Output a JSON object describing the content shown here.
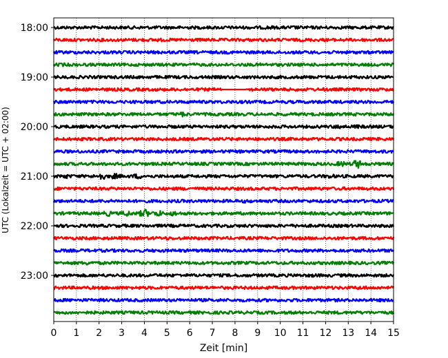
{
  "chart_data": {
    "type": "line",
    "title": "",
    "xlabel": "Zeit  [min]",
    "ylabel": "UTC (Lokalzeit = UTC + 02:00)",
    "xlim": [
      0,
      15
    ],
    "x_ticks": [
      "0",
      "1",
      "2",
      "3",
      "4",
      "5",
      "6",
      "7",
      "8",
      "9",
      "10",
      "11",
      "12",
      "13",
      "14",
      "15"
    ],
    "y_ticks": [
      "18:00",
      "19:00",
      "20:00",
      "21:00",
      "22:00",
      "23:00"
    ],
    "trace_interval_min": 15,
    "start_time": "18:00",
    "trace_count": 24,
    "color_cycle": [
      "#000000",
      "#ff0000",
      "#0000ff",
      "#008000"
    ],
    "grid": "vertical dotted lines at each minute",
    "traces": [
      {
        "time": "18:00",
        "color": "#000000",
        "events": [
          {
            "t": 9.5,
            "amp": 1.3
          },
          {
            "t": 10.6,
            "amp": 1.2
          }
        ]
      },
      {
        "time": "18:15",
        "color": "#ff0000",
        "events": [
          {
            "t": 4.6,
            "amp": 1.2
          },
          {
            "t": 5.7,
            "amp": 1.1
          }
        ]
      },
      {
        "time": "18:30",
        "color": "#0000ff",
        "events": []
      },
      {
        "time": "18:45",
        "color": "#008000",
        "events": [
          {
            "t": 0.4,
            "amp": 1.2
          },
          {
            "t": 9.1,
            "amp": 1.1
          }
        ]
      },
      {
        "time": "19:00",
        "color": "#000000",
        "events": [
          {
            "t": 13.2,
            "amp": 1.1
          }
        ]
      },
      {
        "time": "19:15",
        "color": "#ff0000",
        "events": [
          {
            "t": 11.9,
            "amp": 1.1
          }
        ],
        "gap": [
          7.4,
          8.5
        ]
      },
      {
        "time": "19:30",
        "color": "#0000ff",
        "events": []
      },
      {
        "time": "19:45",
        "color": "#008000",
        "events": [
          {
            "t": 5.7,
            "amp": 1.7
          },
          {
            "t": 15.0,
            "amp": 1.2
          }
        ]
      },
      {
        "time": "20:00",
        "color": "#000000",
        "events": [
          {
            "t": 12.6,
            "amp": 1.5
          },
          {
            "t": 13.4,
            "amp": 1.3
          }
        ]
      },
      {
        "time": "20:15",
        "color": "#ff0000",
        "events": []
      },
      {
        "time": "20:30",
        "color": "#0000ff",
        "events": []
      },
      {
        "time": "20:45",
        "color": "#008000",
        "events": [
          {
            "t": 12.7,
            "amp": 1.8
          },
          {
            "t": 13.4,
            "amp": 3.0
          }
        ]
      },
      {
        "time": "21:00",
        "color": "#000000",
        "events": [
          {
            "t": 0.5,
            "amp": 1.6
          },
          {
            "t": 2.1,
            "amp": 2.4
          },
          {
            "t": 2.7,
            "amp": 1.9
          },
          {
            "t": 3.7,
            "amp": 1.8
          },
          {
            "t": 12.2,
            "amp": 1.5
          }
        ]
      },
      {
        "time": "21:15",
        "color": "#ff0000",
        "events": []
      },
      {
        "time": "21:30",
        "color": "#0000ff",
        "events": [
          {
            "t": 8.5,
            "amp": 1.3
          }
        ]
      },
      {
        "time": "21:45",
        "color": "#008000",
        "events": [
          {
            "t": 2.4,
            "amp": 1.8
          },
          {
            "t": 3.2,
            "amp": 2.0
          },
          {
            "t": 4.0,
            "amp": 3.0
          },
          {
            "t": 4.6,
            "amp": 2.2
          },
          {
            "t": 5.3,
            "amp": 1.7
          }
        ]
      },
      {
        "time": "22:00",
        "color": "#000000",
        "events": [
          {
            "t": 10.8,
            "amp": 1.2
          }
        ]
      },
      {
        "time": "22:15",
        "color": "#ff0000",
        "events": [
          {
            "t": 5.0,
            "amp": 1.2
          }
        ]
      },
      {
        "time": "22:30",
        "color": "#0000ff",
        "events": []
      },
      {
        "time": "22:45",
        "color": "#008000",
        "events": [
          {
            "t": 1.5,
            "amp": 1.4
          }
        ]
      },
      {
        "time": "23:00",
        "color": "#000000",
        "events": [
          {
            "t": 11.5,
            "amp": 1.2
          }
        ]
      },
      {
        "time": "23:15",
        "color": "#ff0000",
        "events": [
          {
            "t": 13.6,
            "amp": 1.3
          }
        ]
      },
      {
        "time": "23:30",
        "color": "#0000ff",
        "events": []
      },
      {
        "time": "23:45",
        "color": "#008000",
        "events": []
      }
    ]
  }
}
